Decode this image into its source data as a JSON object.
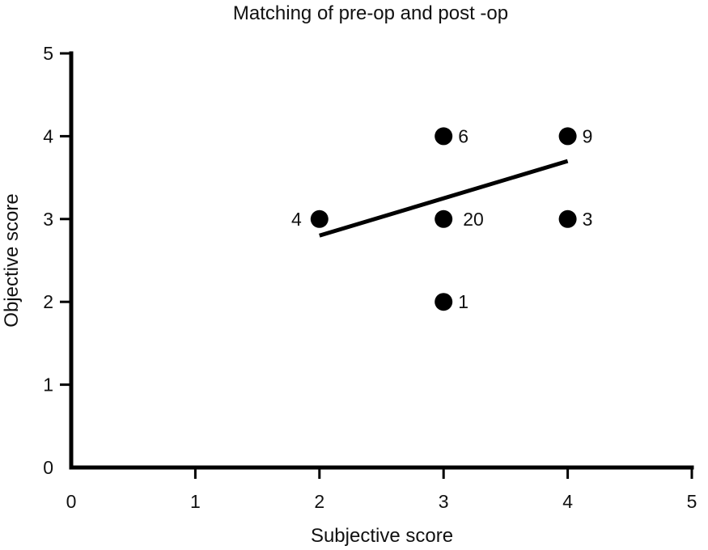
{
  "chart_data": {
    "type": "scatter",
    "title": "Matching of pre-op and post -op",
    "xlabel": "Subjective score",
    "ylabel": "Objective score",
    "xlim": [
      0,
      5
    ],
    "ylim": [
      0,
      5
    ],
    "xticks": [
      "0",
      "1",
      "2",
      "3",
      "4",
      "5"
    ],
    "yticks": [
      "0",
      "1",
      "2",
      "3",
      "4",
      "5"
    ],
    "grid": false,
    "points": [
      {
        "x": 2,
        "y": 3,
        "label": "4"
      },
      {
        "x": 3,
        "y": 4,
        "label": "6"
      },
      {
        "x": 3,
        "y": 3,
        "label": "20"
      },
      {
        "x": 3,
        "y": 2,
        "label": "1"
      },
      {
        "x": 4,
        "y": 4,
        "label": "9"
      },
      {
        "x": 4,
        "y": 3,
        "label": "3"
      }
    ],
    "trendline": {
      "x": [
        2,
        4
      ],
      "y": [
        2.8,
        3.7
      ]
    },
    "colors": {
      "points": "#000000",
      "line": "#000000",
      "axis": "#000000"
    }
  }
}
